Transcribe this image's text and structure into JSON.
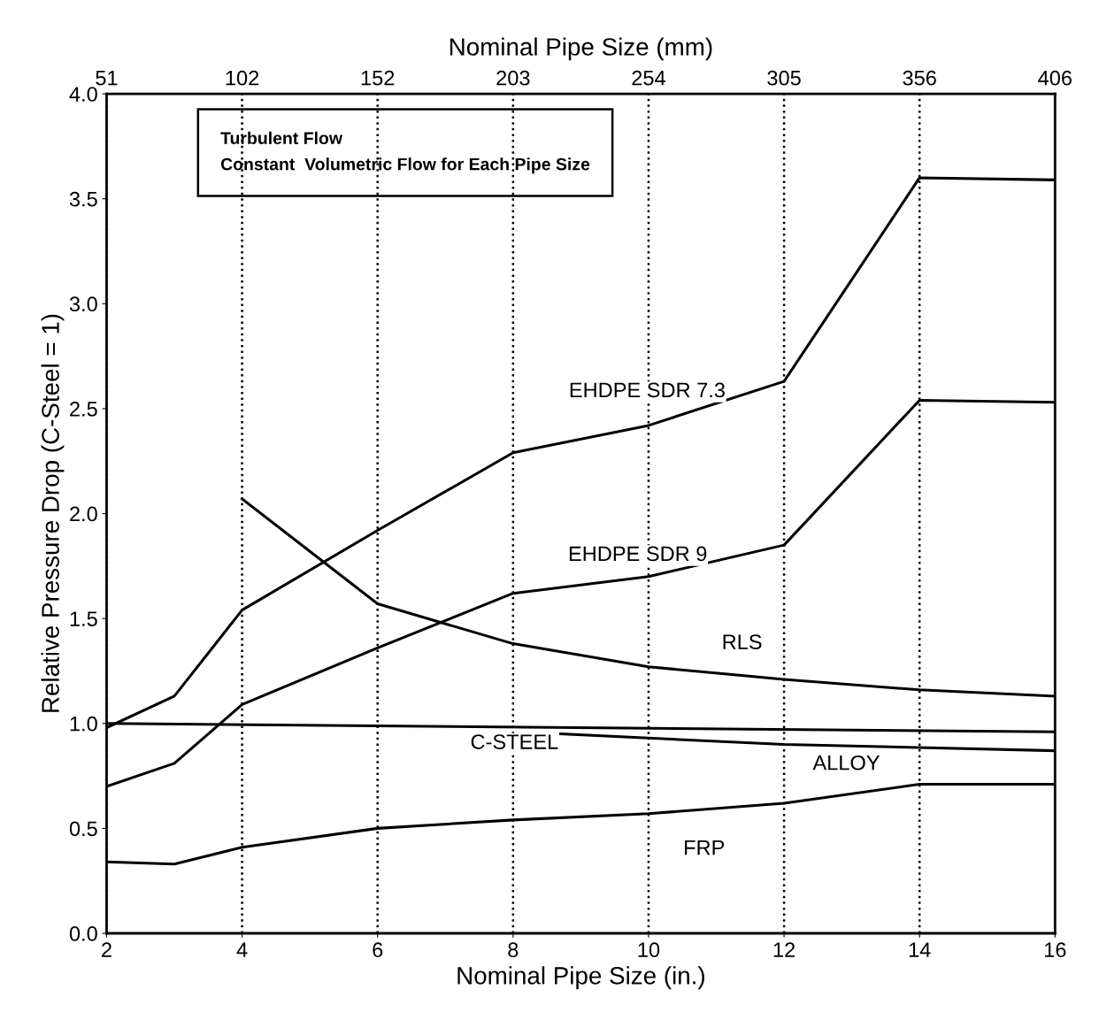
{
  "chart_data": {
    "type": "line",
    "xlabel": "Nominal Pipe Size (in.)",
    "ylabel": "Relative Pressure Drop (C-Steel = 1)",
    "x2label": "Nominal Pipe Size (mm)",
    "xlim": [
      2,
      16
    ],
    "xticks": [
      2,
      4,
      6,
      8,
      10,
      12,
      14,
      16
    ],
    "ylim": [
      0,
      4
    ],
    "yticks": [
      {
        "value": 0,
        "label": "0.0"
      },
      {
        "value": 0.5,
        "label": "0.5"
      },
      {
        "value": 1,
        "label": "1.0"
      },
      {
        "value": 1.5,
        "label": "1.5"
      },
      {
        "value": 2,
        "label": "2.0"
      },
      {
        "value": 2.5,
        "label": "2.5"
      },
      {
        "value": 3,
        "label": "3.0"
      },
      {
        "value": 3.5,
        "label": "3.5"
      },
      {
        "value": 4,
        "label": "4.0"
      }
    ],
    "x2lim": [
      50.8,
      406.4
    ],
    "x2ticks": [
      {
        "value": 50.8,
        "label": "51"
      },
      {
        "value": 101.6,
        "label": "102"
      },
      {
        "value": 152.4,
        "label": "152"
      },
      {
        "value": 203.2,
        "label": "203"
      },
      {
        "value": 254,
        "label": "254"
      },
      {
        "value": 304.8,
        "label": "305"
      },
      {
        "value": 355.6,
        "label": "356"
      },
      {
        "value": 406.4,
        "label": "406"
      }
    ],
    "grid": "x",
    "legend": false,
    "marker": "none",
    "line_style": "solid",
    "series": [
      {
        "name": "EHDPE SDR 7.3",
        "color": "#000000",
        "x": [
          2,
          3,
          4,
          6,
          8,
          10,
          12,
          14,
          16
        ],
        "values": [
          0.98,
          1.13,
          1.54,
          1.92,
          2.29,
          2.42,
          2.63,
          3.6,
          3.59
        ]
      },
      {
        "name": "EHDPE SDR 9",
        "color": "#000000",
        "x": [
          2,
          3,
          4,
          6,
          8,
          10,
          12,
          14,
          16
        ],
        "values": [
          0.7,
          0.81,
          1.09,
          1.36,
          1.62,
          1.7,
          1.85,
          2.54,
          2.53
        ]
      },
      {
        "name": "RLS",
        "color": "#000000",
        "x": [
          4,
          6,
          8,
          10,
          12,
          14,
          16
        ],
        "values": [
          2.07,
          1.57,
          1.38,
          1.27,
          1.21,
          1.16,
          1.13
        ]
      },
      {
        "name": "C-STEEL",
        "color": "#000000",
        "x": [
          2,
          16
        ],
        "values": [
          1.0,
          0.96
        ]
      },
      {
        "name": "ALLOY",
        "color": "#000000",
        "x": [
          8.7,
          12,
          16
        ],
        "values": [
          0.95,
          0.9,
          0.87
        ]
      },
      {
        "name": "FRP",
        "color": "#000000",
        "x": [
          2,
          3,
          4,
          6,
          8,
          10,
          12,
          14,
          16
        ],
        "values": [
          0.34,
          0.33,
          0.41,
          0.5,
          0.54,
          0.57,
          0.62,
          0.71,
          0.71
        ]
      }
    ],
    "annotations": [
      "Turbulent Flow\nConstant  Volumetric Flow for Each Pipe Size"
    ]
  }
}
